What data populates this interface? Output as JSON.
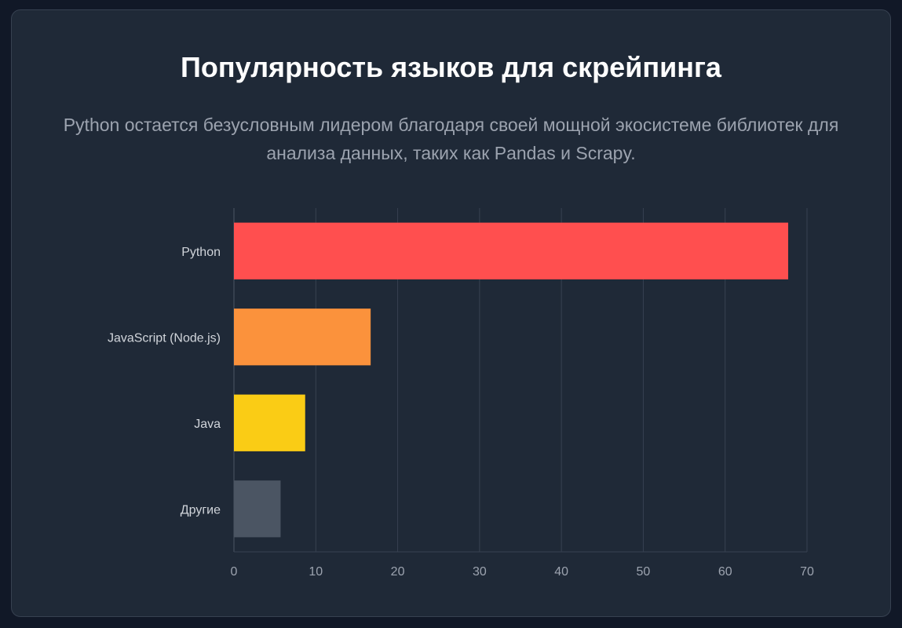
{
  "title": "Популярность языков для скрейпинга",
  "subtitle": "Python остается безусловным лидером благодаря своей мощной экосистеме библиотек для анализа данных, таких как Pandas и Scrapy.",
  "chart_data": {
    "type": "bar",
    "orientation": "horizontal",
    "categories": [
      "Python",
      "JavaScript (Node.js)",
      "Java",
      "Другие"
    ],
    "values": [
      67.7,
      16.7,
      8.7,
      5.7
    ],
    "colors": [
      "#ff4f4f",
      "#fb923c",
      "#facc15",
      "#4b5563"
    ],
    "xlim": [
      0,
      70
    ],
    "xticks": [
      0,
      10,
      20,
      30,
      40,
      50,
      60,
      70
    ],
    "grid": true,
    "legend": "none"
  }
}
